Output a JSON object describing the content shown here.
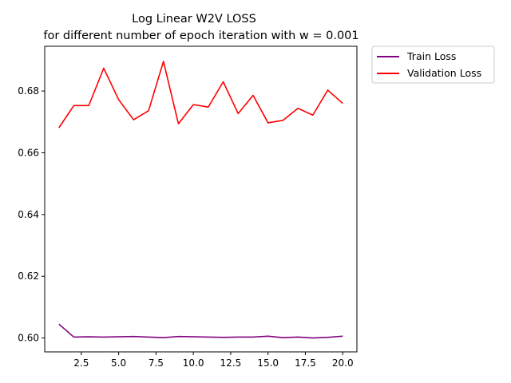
{
  "chart_data": {
    "type": "line",
    "title_line1": "Log Linear W2V LOSS",
    "title_line2": "for different number of epoch iteration with w = 0.001",
    "xlabel": "",
    "ylabel": "",
    "xlim": [
      0.05,
      20.95
    ],
    "ylim": [
      0.5955,
      0.6945
    ],
    "xticks": [
      2.5,
      5.0,
      7.5,
      10.0,
      12.5,
      15.0,
      17.5,
      20.0
    ],
    "xtick_labels": [
      "2.5",
      "5.0",
      "7.5",
      "10.0",
      "12.5",
      "15.0",
      "17.5",
      "20.0"
    ],
    "yticks": [
      0.6,
      0.62,
      0.64,
      0.66,
      0.68
    ],
    "ytick_labels": [
      "0.60",
      "0.62",
      "0.64",
      "0.66",
      "0.68"
    ],
    "grid": false,
    "legend_position": "outside-top-right",
    "x": [
      1,
      2,
      3,
      4,
      5,
      6,
      7,
      8,
      9,
      10,
      11,
      12,
      13,
      14,
      15,
      16,
      17,
      18,
      19,
      20
    ],
    "series": [
      {
        "name": "Train Loss",
        "color": "#800080",
        "values": [
          0.6045,
          0.6003,
          0.6004,
          0.6003,
          0.6004,
          0.6005,
          0.6003,
          0.6001,
          0.6005,
          0.6004,
          0.6003,
          0.6002,
          0.6003,
          0.6003,
          0.6006,
          0.6001,
          0.6003,
          0.6,
          0.6002,
          0.6006
        ]
      },
      {
        "name": "Validation Loss",
        "color": "#ff0000",
        "values": [
          0.6681,
          0.6753,
          0.6753,
          0.6874,
          0.6772,
          0.6707,
          0.6736,
          0.6896,
          0.6694,
          0.6756,
          0.6748,
          0.683,
          0.6727,
          0.6786,
          0.6697,
          0.6705,
          0.6744,
          0.6722,
          0.6803,
          0.676
        ]
      }
    ]
  }
}
